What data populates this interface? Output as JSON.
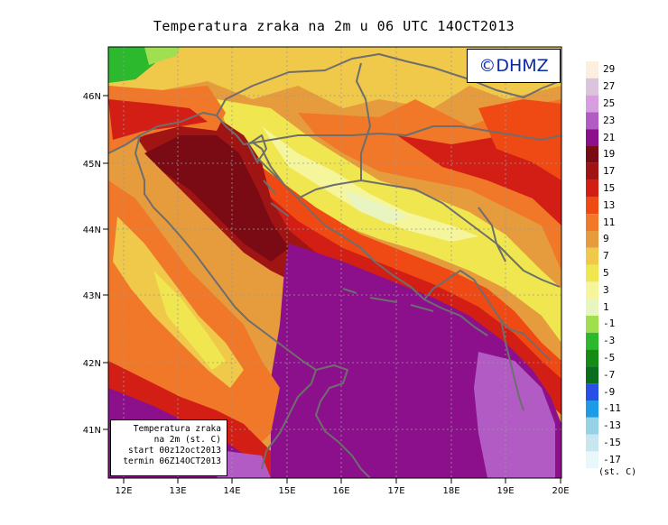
{
  "title": "Temperatura zraka na 2m u 06 UTC 14OCT2013",
  "logo": "©DHMZ",
  "info": {
    "line1": "Temperatura zraka",
    "line2": "na 2m (st. C)",
    "line3": "start 00z12oct2013",
    "line4": "termin 06Z14OCT2013"
  },
  "map": {
    "lon_labels": [
      "12E",
      "13E",
      "14E",
      "15E",
      "16E",
      "17E",
      "18E",
      "19E",
      "20E"
    ],
    "lat_labels": [
      "41N",
      "42N",
      "43N",
      "44N",
      "45N",
      "46N"
    ],
    "lon_range": [
      11.8,
      20.0
    ],
    "lat_range": [
      40.25,
      46.8
    ]
  },
  "legend": {
    "labels": [
      "29",
      "27",
      "25",
      "23",
      "21",
      "19",
      "17",
      "15",
      "13",
      "11",
      "9",
      "7",
      "5",
      "3",
      "1",
      "-1",
      "-3",
      "-5",
      "-7",
      "-9",
      "-11",
      "-13",
      "-15",
      "-17"
    ],
    "colors": [
      "#fdefe0",
      "#dcc4dc",
      "#d79ee0",
      "#b35bc4",
      "#8c108c",
      "#7a0a14",
      "#a01414",
      "#d21e14",
      "#f04a14",
      "#f07828",
      "#e69b3c",
      "#f0c84a",
      "#f0e650",
      "#f5f59b",
      "#e8f5c0",
      "#a0e050",
      "#2db92d",
      "#148c14",
      "#0a6e1e",
      "#2850e6",
      "#1e9be6",
      "#96d2e6",
      "#c8e6f0",
      "#e8f7fa"
    ],
    "unit": "(st. C)"
  },
  "colors": {
    "coast": "#6e6e6e",
    "grid": "#9a9a9a"
  }
}
